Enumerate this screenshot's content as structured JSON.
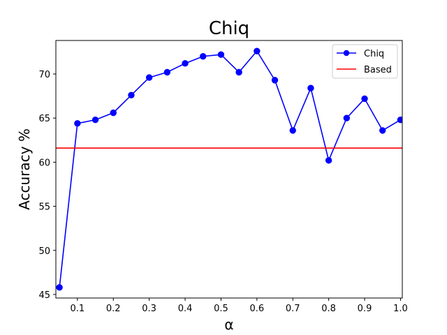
{
  "chart_data": {
    "type": "line",
    "title": "Chiq",
    "xlabel": "α",
    "ylabel": "Accuracy %",
    "xlim": [
      0.04,
      1.005
    ],
    "ylim": [
      44.6,
      73.8
    ],
    "x_ticks": [
      0.1,
      0.2,
      0.3,
      0.4,
      0.5,
      0.6,
      0.7,
      0.8,
      0.9,
      1.0
    ],
    "x_tick_labels": [
      "0.1",
      "0.2",
      "0.3",
      "0.4",
      "0.5",
      "0.6",
      "0.7",
      "0.8",
      "0.9",
      "1.0"
    ],
    "y_ticks": [
      45,
      50,
      55,
      60,
      65,
      70
    ],
    "y_tick_labels": [
      "45",
      "50",
      "55",
      "60",
      "65",
      "70"
    ],
    "grid": false,
    "legend_position": "top-right",
    "series": [
      {
        "name": "Chiq",
        "type": "line-with-markers",
        "color": "#0000ff",
        "x": [
          0.05,
          0.1,
          0.15,
          0.2,
          0.25,
          0.3,
          0.35,
          0.4,
          0.45,
          0.5,
          0.55,
          0.6,
          0.65,
          0.7,
          0.75,
          0.8,
          0.85,
          0.9,
          0.95,
          1.0
        ],
        "y": [
          45.8,
          64.4,
          64.8,
          65.6,
          67.6,
          69.6,
          70.2,
          71.2,
          72.0,
          72.2,
          70.2,
          72.6,
          69.3,
          63.6,
          68.4,
          60.2,
          65.0,
          67.2,
          63.6,
          64.8
        ]
      },
      {
        "name": "Based",
        "type": "horizontal-line",
        "color": "#ff0000",
        "y": 61.6
      }
    ]
  }
}
